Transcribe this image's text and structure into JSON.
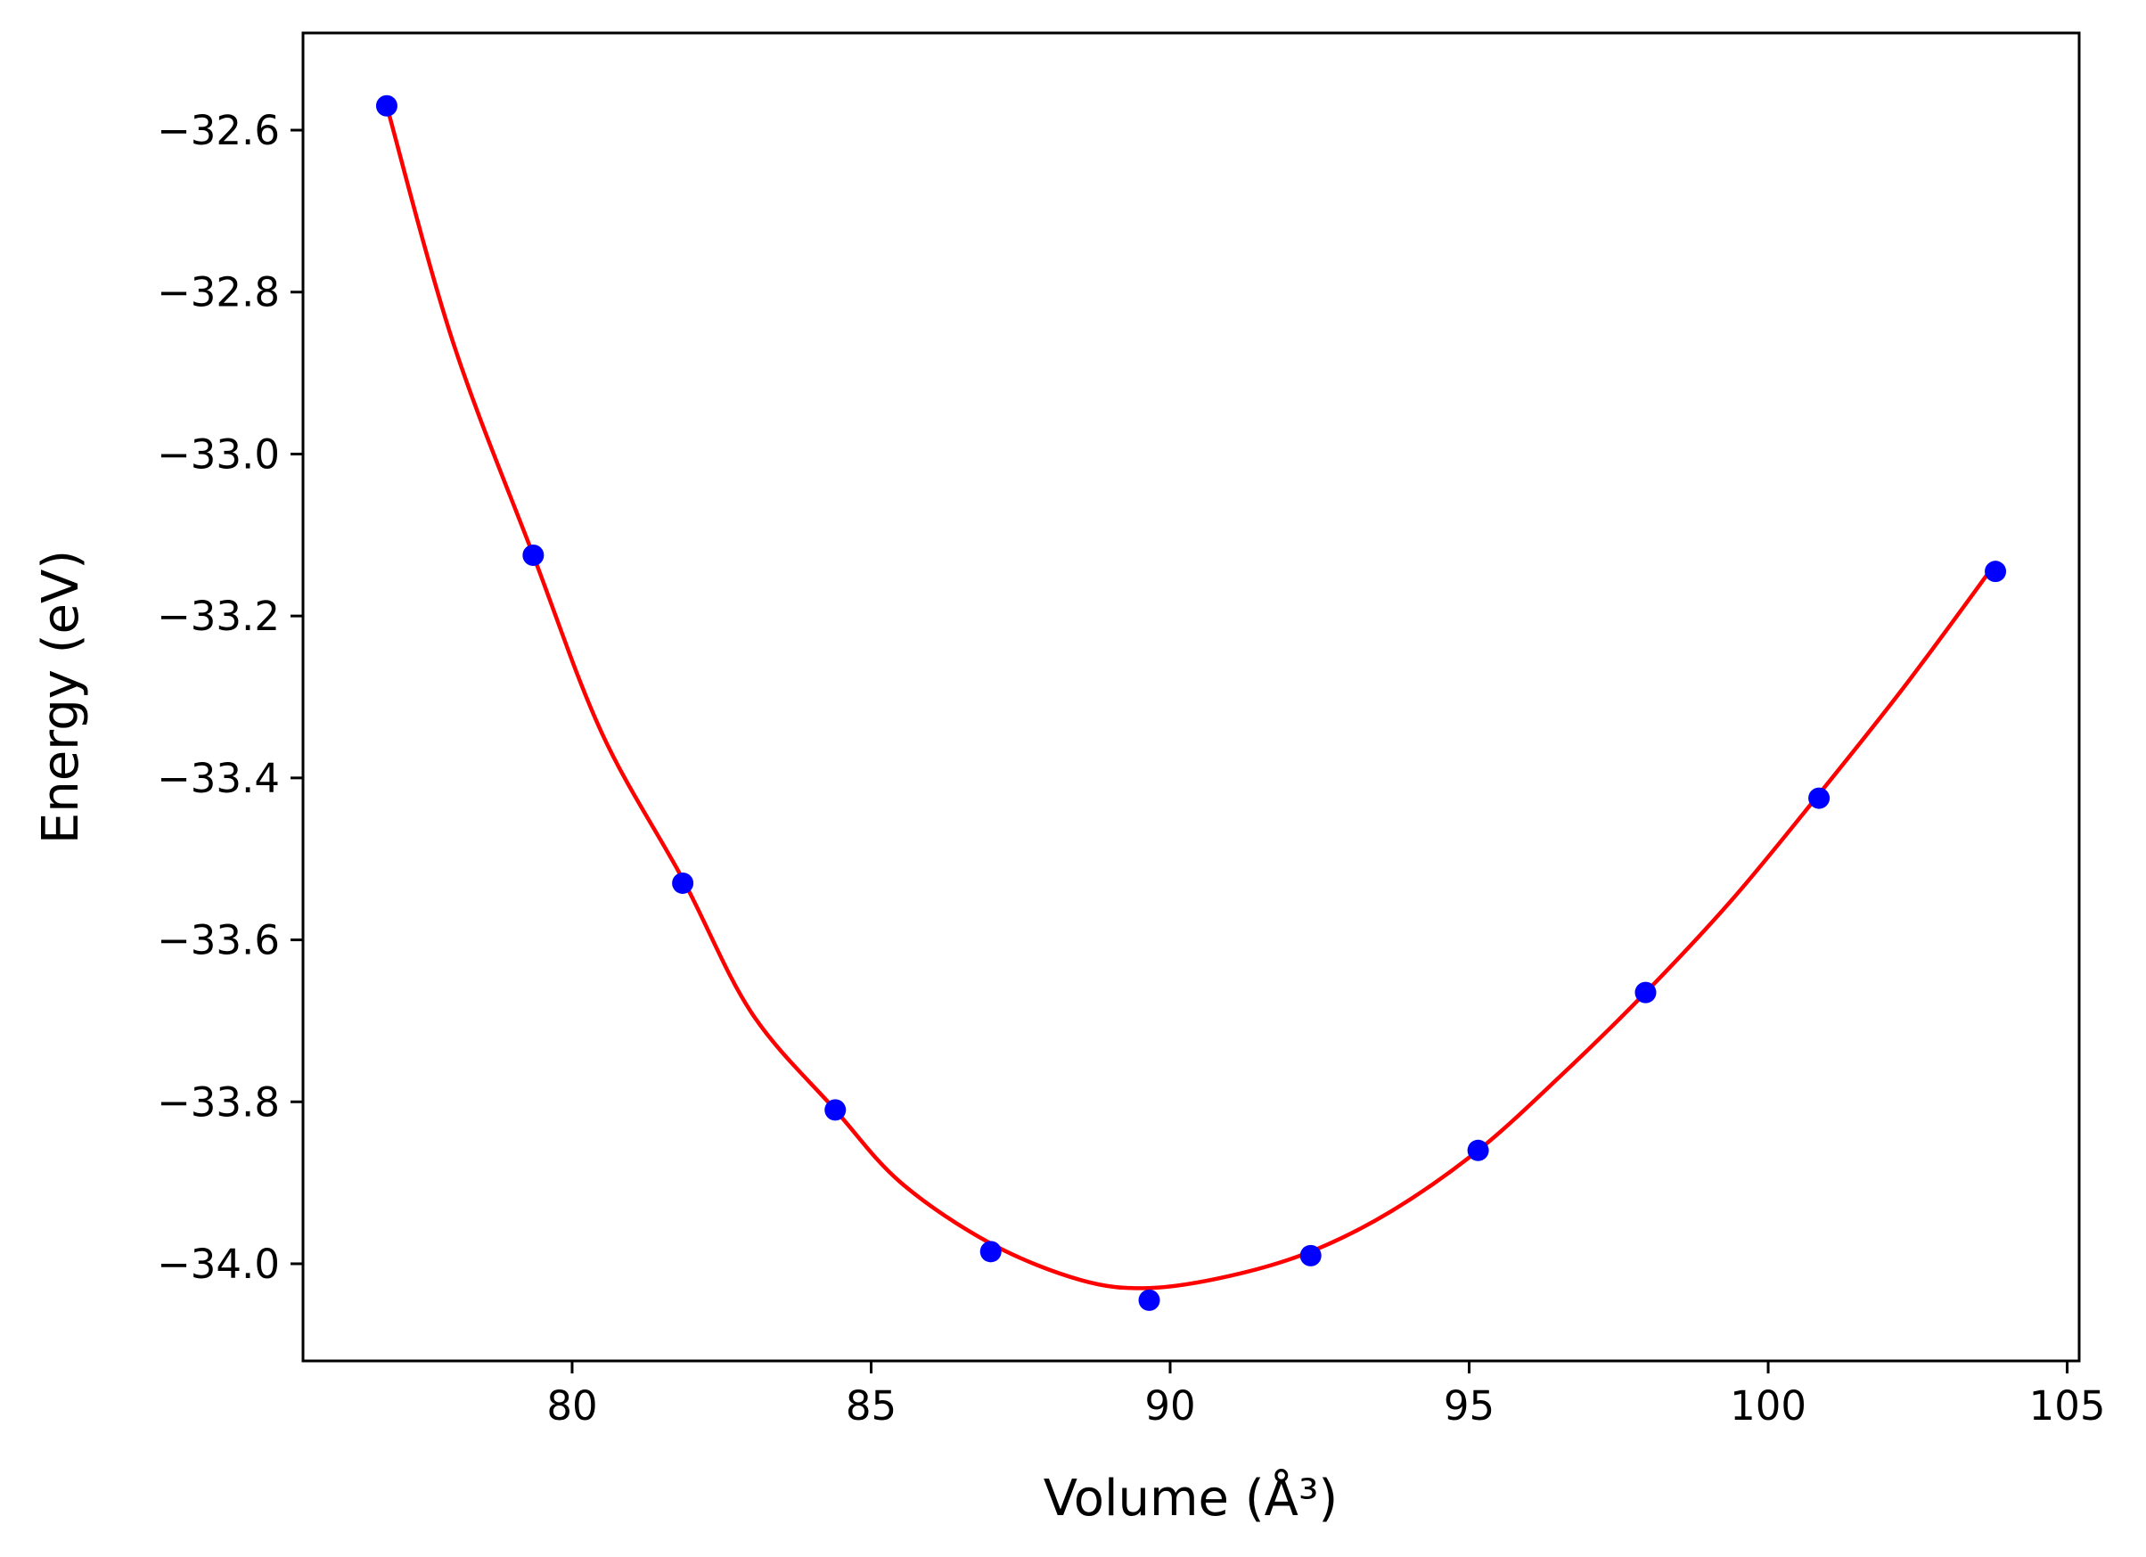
{
  "chart_data": {
    "type": "scatter",
    "title": "",
    "xlabel": "Volume (Å³)",
    "ylabel": "Energy (eV)",
    "xlim": [
      75.5,
      105.2
    ],
    "ylim": [
      -34.12,
      -32.48
    ],
    "x_ticks": [
      80,
      85,
      90,
      95,
      100,
      105
    ],
    "x_tick_labels": [
      "80",
      "85",
      "90",
      "95",
      "100",
      "105"
    ],
    "y_ticks": [
      -32.6,
      -32.8,
      -33.0,
      -33.2,
      -33.4,
      -33.6,
      -33.8,
      -34.0
    ],
    "y_tick_labels": [
      "−32.6",
      "−32.8",
      "−33.0",
      "−33.2",
      "−33.4",
      "−33.6",
      "−33.8",
      "−34.0"
    ],
    "grid": false,
    "series": [
      {
        "kind": "points",
        "color": "#0000ff",
        "x": [
          76.9,
          79.35,
          81.85,
          84.4,
          87.0,
          89.65,
          92.35,
          95.15,
          97.95,
          100.85,
          103.8
        ],
        "y": [
          -32.57,
          -33.125,
          -33.53,
          -33.81,
          -33.985,
          -34.045,
          -33.99,
          -33.86,
          -33.665,
          -33.425,
          -33.145
        ]
      },
      {
        "kind": "fit-line",
        "color": "#ff0000",
        "x": [
          76.9,
          78.0,
          79.35,
          80.5,
          81.85,
          83.0,
          84.4,
          85.5,
          87.0,
          88.5,
          89.65,
          91.0,
          92.35,
          93.7,
          95.15,
          96.5,
          97.95,
          99.4,
          100.85,
          102.3,
          103.8
        ],
        "y": [
          -32.57,
          -32.86,
          -33.125,
          -33.345,
          -33.525,
          -33.69,
          -33.81,
          -33.9,
          -33.975,
          -34.02,
          -34.03,
          -34.015,
          -33.985,
          -33.935,
          -33.86,
          -33.77,
          -33.665,
          -33.55,
          -33.42,
          -33.285,
          -33.135
        ]
      }
    ]
  }
}
